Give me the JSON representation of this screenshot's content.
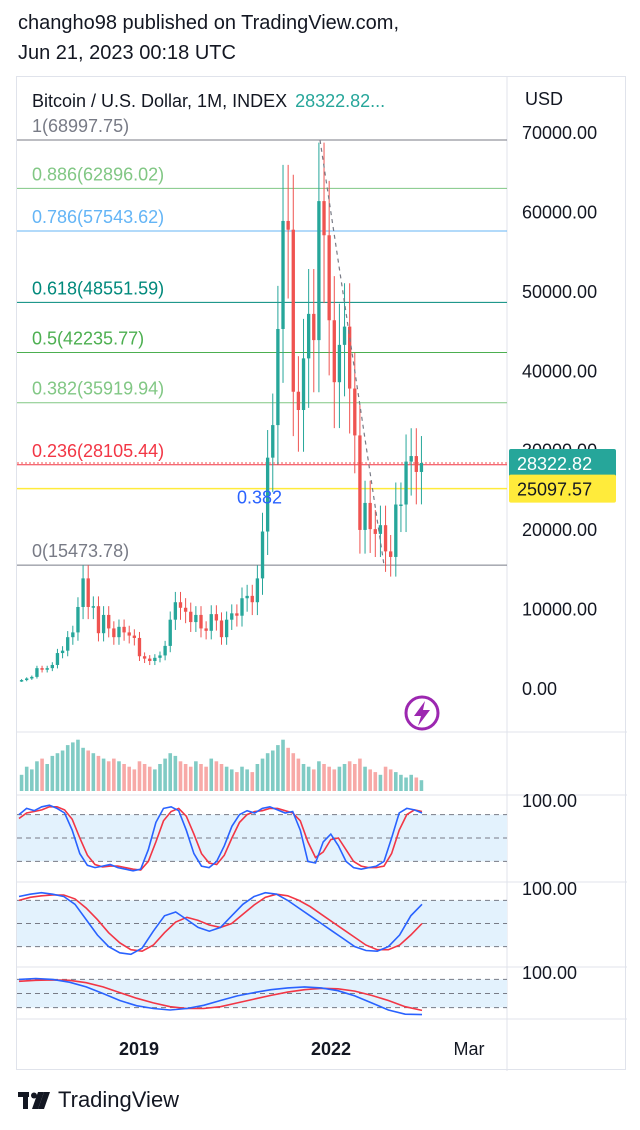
{
  "header": {
    "line1": "changho98 published on TradingView.com,",
    "line2": "Jun 21, 2023 00:18 UTC"
  },
  "legend": {
    "symbol": "Bitcoin / U.S. Dollar, 1M, INDEX",
    "price": "28322.82...",
    "price_color": "#26a69a"
  },
  "footer": {
    "brand": "TradingView"
  },
  "colors": {
    "up": "#26a69a",
    "down": "#ef5350",
    "stoch_k": "#2962ff",
    "stoch_d": "#f23645",
    "band_fill": "#e3f2fd",
    "fib_gray": "#787b86",
    "fib_green": "#4caf50",
    "fib_light_green": "#81c784",
    "fib_teal": "#00897b",
    "fib_blue": "#64b5f6",
    "fib_red": "#f23645",
    "yellow_line": "#ffeb3b",
    "icon_purple": "#9c27b0"
  },
  "chart_data": {
    "type": "candlestick",
    "title": "Bitcoin / U.S. Dollar, 1M, INDEX",
    "price_scale": {
      "unit_label": "USD",
      "ticks": [
        "70000.00",
        "60000.00",
        "50000.00",
        "40000.00",
        "30000.00",
        "20000.00",
        "10000.00",
        "0.00"
      ],
      "tick_values": [
        70000,
        60000,
        50000,
        40000,
        30000,
        20000,
        10000,
        0
      ],
      "range": [
        -5000,
        73000
      ]
    },
    "time_axis": {
      "labels": [
        "2019",
        "2022",
        "Mar"
      ]
    },
    "last_price": {
      "label": "28322.82",
      "value": 28322.82,
      "color": "#26a69a"
    },
    "horizontal_line": {
      "label": "25097.57",
      "value": 25097.57,
      "color": "#ffeb3b"
    },
    "fib_levels": [
      {
        "label": "1(68997.75)",
        "value": 68997.75,
        "color": "#787b86"
      },
      {
        "label": "0.886(62896.02)",
        "value": 62896.02,
        "color": "#81c784"
      },
      {
        "label": "0.786(57543.62)",
        "value": 57543.62,
        "color": "#64b5f6"
      },
      {
        "label": "0.618(48551.59)",
        "value": 48551.59,
        "color": "#00897b"
      },
      {
        "label": "0.5(42235.77)",
        "value": 42235.77,
        "color": "#4caf50"
      },
      {
        "label": "0.382(35919.94)",
        "value": 35919.94,
        "color": "#81c784"
      },
      {
        "label": "0.236(28105.44)",
        "value": 28105.44,
        "color": "#f23645"
      },
      {
        "label": "0(15473.78)",
        "value": 15473.78,
        "color": "#787b86"
      }
    ],
    "annotation": {
      "label": "0.382",
      "value": 24000,
      "color": "#2962ff"
    },
    "candles_close": [
      1000,
      1200,
      1400,
      2500,
      2300,
      2500,
      2900,
      4400,
      4700,
      6400,
      7000,
      10200,
      13800,
      10200,
      10300,
      6900,
      9200,
      7500,
      6400,
      7700,
      7000,
      6600,
      6300,
      4000,
      3700,
      3400,
      3800,
      4100,
      5300,
      8600,
      10800,
      10100,
      9600,
      8300,
      9200,
      7500,
      7200,
      9300,
      8500,
      6400,
      8600,
      9400,
      9100,
      11300,
      11600,
      10800,
      13800,
      19700,
      29000,
      33100,
      45200,
      58800,
      57700,
      37300,
      35000,
      41500,
      47100,
      43800,
      61300,
      57000,
      46300,
      38500,
      43200,
      45500,
      37700,
      31800,
      19900,
      23300,
      20000,
      19400,
      20500,
      17200,
      16500,
      23100,
      23100,
      28500,
      29200,
      27200,
      28322.82
    ],
    "volume_values": [
      30,
      45,
      40,
      55,
      60,
      50,
      65,
      70,
      75,
      85,
      90,
      95,
      80,
      75,
      70,
      65,
      60,
      55,
      60,
      55,
      50,
      45,
      40,
      55,
      50,
      45,
      40,
      50,
      60,
      70,
      65,
      55,
      50,
      45,
      55,
      50,
      45,
      60,
      55,
      50,
      45,
      40,
      35,
      45,
      40,
      35,
      50,
      60,
      70,
      75,
      85,
      95,
      80,
      70,
      60,
      50,
      45,
      40,
      55,
      50,
      45,
      40,
      45,
      50,
      55,
      50,
      60,
      45,
      40,
      35,
      30,
      45,
      40,
      35,
      30,
      25,
      30,
      25,
      20
    ],
    "oscillators": [
      {
        "label_top": "100.00",
        "range": [
          0,
          100
        ],
        "guide_levels": [
          80,
          50,
          20
        ],
        "k": [
          80,
          88,
          85,
          90,
          92,
          88,
          82,
          60,
          30,
          15,
          12,
          14,
          16,
          12,
          10,
          8,
          10,
          35,
          70,
          88,
          90,
          85,
          60,
          30,
          14,
          12,
          20,
          40,
          65,
          80,
          85,
          82,
          88,
          90,
          86,
          82,
          84,
          60,
          20,
          18,
          45,
          55,
          40,
          20,
          12,
          10,
          12,
          14,
          20,
          50,
          82,
          88,
          86,
          82
        ],
        "d": [
          75,
          82,
          84,
          86,
          90,
          90,
          86,
          74,
          50,
          28,
          16,
          13,
          14,
          14,
          12,
          10,
          9,
          20,
          45,
          72,
          84,
          88,
          78,
          55,
          30,
          18,
          16,
          28,
          50,
          70,
          80,
          84,
          85,
          88,
          88,
          85,
          82,
          72,
          45,
          25,
          32,
          48,
          50,
          35,
          20,
          14,
          12,
          12,
          14,
          30,
          60,
          80,
          86,
          84
        ]
      },
      {
        "label_top": "100.00",
        "range": [
          0,
          100
        ],
        "guide_levels": [
          80,
          50,
          20
        ],
        "k": [
          85,
          88,
          90,
          88,
          85,
          75,
          55,
          35,
          20,
          12,
          10,
          18,
          40,
          60,
          65,
          55,
          45,
          40,
          45,
          60,
          75,
          85,
          90,
          88,
          80,
          70,
          60,
          50,
          40,
          30,
          20,
          15,
          14,
          20,
          35,
          60,
          75
        ],
        "d": [
          80,
          84,
          86,
          87,
          87,
          82,
          70,
          55,
          38,
          25,
          16,
          14,
          22,
          38,
          52,
          58,
          54,
          48,
          45,
          50,
          62,
          74,
          84,
          88,
          86,
          80,
          72,
          62,
          52,
          42,
          32,
          22,
          16,
          16,
          22,
          35,
          50
        ]
      },
      {
        "label_top": "100.00",
        "range": [
          0,
          100
        ],
        "guide_levels": [
          80,
          50,
          20
        ],
        "k": [
          80,
          82,
          80,
          74,
          64,
          50,
          35,
          24,
          18,
          15,
          18,
          25,
          35,
          45,
          52,
          58,
          62,
          64,
          62,
          56,
          45,
          30,
          15,
          6,
          5
        ],
        "d": [
          76,
          78,
          79,
          78,
          73,
          64,
          52,
          40,
          30,
          22,
          18,
          18,
          22,
          30,
          38,
          46,
          53,
          58,
          61,
          60,
          55,
          46,
          35,
          22,
          14
        ]
      }
    ]
  }
}
